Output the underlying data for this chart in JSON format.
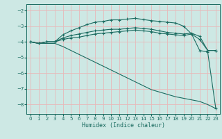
{
  "xlabel": "Humidex (Indice chaleur)",
  "bg_color": "#cde8e4",
  "grid_color": "#e8b8b8",
  "line_color": "#1a6b60",
  "xlim": [
    -0.5,
    23.5
  ],
  "ylim": [
    -8.6,
    -1.6
  ],
  "xticks": [
    0,
    1,
    2,
    3,
    4,
    5,
    6,
    7,
    8,
    9,
    10,
    11,
    12,
    13,
    14,
    15,
    16,
    17,
    18,
    19,
    20,
    21,
    22,
    23
  ],
  "yticks": [
    -8,
    -7,
    -6,
    -5,
    -4,
    -3,
    -2
  ],
  "line1_x": [
    0,
    1,
    2,
    3,
    4,
    5,
    6,
    7,
    8,
    9,
    10,
    11,
    12,
    13,
    14,
    15,
    16,
    17,
    18,
    19,
    20,
    21,
    22,
    23
  ],
  "line1_y": [
    -4.0,
    -4.1,
    -4.0,
    -4.0,
    -3.55,
    -3.3,
    -3.1,
    -2.9,
    -2.75,
    -2.7,
    -2.6,
    -2.6,
    -2.55,
    -2.5,
    -2.58,
    -2.65,
    -2.7,
    -2.75,
    -2.8,
    -3.0,
    -3.5,
    -4.55,
    -4.65,
    -8.25
  ],
  "line2_x": [
    0,
    1,
    2,
    3,
    4,
    5,
    6,
    7,
    8,
    9,
    10,
    11,
    12,
    13,
    14,
    15,
    16,
    17,
    18,
    19,
    20,
    21,
    22,
    23
  ],
  "line2_y": [
    -4.0,
    -4.1,
    -4.0,
    -4.0,
    -3.75,
    -3.6,
    -3.5,
    -3.4,
    -3.3,
    -3.25,
    -3.2,
    -3.2,
    -3.15,
    -3.1,
    -3.15,
    -3.2,
    -3.3,
    -3.4,
    -3.45,
    -3.5,
    -3.45,
    -3.65,
    -4.55,
    -4.55
  ],
  "line3_x": [
    0,
    1,
    2,
    3,
    4,
    5,
    6,
    7,
    8,
    9,
    10,
    11,
    12,
    13,
    14,
    15,
    16,
    17,
    18,
    19,
    20,
    21,
    22,
    23
  ],
  "line3_y": [
    -4.0,
    -4.1,
    -4.0,
    -4.0,
    -3.85,
    -3.75,
    -3.7,
    -3.6,
    -3.5,
    -3.45,
    -3.4,
    -3.35,
    -3.3,
    -3.25,
    -3.3,
    -3.35,
    -3.45,
    -3.5,
    -3.55,
    -3.6,
    -3.5,
    -3.85,
    -4.55,
    -4.55
  ],
  "line4_x": [
    0,
    1,
    2,
    3,
    4,
    5,
    6,
    7,
    8,
    9,
    10,
    11,
    12,
    13,
    14,
    15,
    16,
    17,
    18,
    19,
    20,
    21,
    22,
    23
  ],
  "line4_y": [
    -4.0,
    -4.1,
    -4.1,
    -4.1,
    -4.3,
    -4.55,
    -4.8,
    -5.05,
    -5.3,
    -5.55,
    -5.8,
    -6.05,
    -6.3,
    -6.55,
    -6.8,
    -7.05,
    -7.2,
    -7.35,
    -7.5,
    -7.6,
    -7.7,
    -7.8,
    -8.0,
    -8.25
  ]
}
